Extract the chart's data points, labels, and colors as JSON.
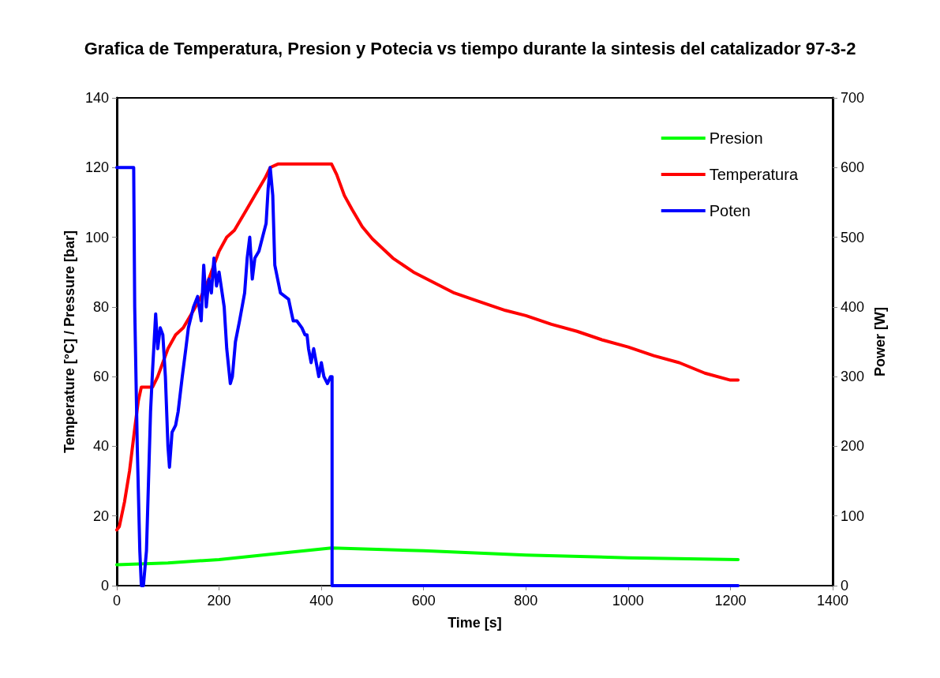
{
  "chart_data": {
    "type": "line",
    "title": "Grafica de Temperatura, Presion y Potecia vs tiempo durante la sintesis del catalizador 97-3-2",
    "xlabel": "Time [s]",
    "ylabel": "Temperature [°C] / Pressure [bar]",
    "y2label": "Power [W]",
    "xlim": [
      0,
      1400
    ],
    "xticks": [
      0,
      200,
      400,
      600,
      800,
      1000,
      1200,
      1400
    ],
    "ylim": [
      0,
      140
    ],
    "yticks": [
      0,
      20,
      40,
      60,
      80,
      100,
      120,
      140
    ],
    "y2lim": [
      0,
      700
    ],
    "y2ticks": [
      0,
      100,
      200,
      300,
      400,
      500,
      600,
      700
    ],
    "grid": false,
    "legend": "top right",
    "marker": "none",
    "line_style": "solid",
    "series": [
      {
        "name": "Presion",
        "color": "#00ff00",
        "x": [
          0,
          100,
          200,
          300,
          420,
          600,
          800,
          1000,
          1215
        ],
        "values": [
          6,
          6.5,
          7.5,
          9,
          10.8,
          10,
          8.8,
          8,
          7.5
        ]
      },
      {
        "name": "Temperatura",
        "color": "#ff0000",
        "x": [
          0,
          5,
          15,
          25,
          35,
          42,
          48,
          70,
          80,
          90,
          100,
          115,
          130,
          150,
          165,
          180,
          200,
          215,
          230,
          250,
          270,
          290,
          300,
          315,
          420,
          430,
          445,
          460,
          480,
          500,
          540,
          580,
          620,
          660,
          700,
          760,
          800,
          850,
          900,
          950,
          1000,
          1050,
          1100,
          1150,
          1200,
          1215
        ],
        "values": [
          16,
          17,
          24,
          33,
          45,
          53,
          57,
          57,
          60,
          64,
          68,
          72,
          74,
          79,
          83,
          88,
          96,
          100,
          102,
          107,
          112,
          117,
          120,
          121,
          121,
          118,
          112,
          108,
          103,
          99.5,
          94,
          90,
          87,
          84,
          82,
          79,
          77.5,
          75,
          73,
          70.5,
          68.5,
          66,
          64,
          61,
          59,
          59
        ]
      },
      {
        "name": "Poten",
        "color": "#0000ff",
        "axis": "y2",
        "x": [
          0,
          33,
          35,
          40,
          45,
          48,
          52,
          58,
          62,
          66,
          70,
          73,
          76,
          80,
          85,
          90,
          95,
          100,
          103,
          108,
          115,
          120,
          128,
          135,
          140,
          150,
          158,
          165,
          170,
          175,
          180,
          185,
          190,
          195,
          200,
          210,
          215,
          222,
          226,
          232,
          240,
          250,
          255,
          260,
          265,
          270,
          278,
          285,
          292,
          296,
          300,
          305,
          309,
          320,
          336,
          342,
          345,
          352,
          362,
          368,
          372,
          375,
          380,
          385,
          390,
          395,
          400,
          405,
          412,
          418,
          421,
          421,
          1215
        ],
        "values": [
          600,
          600,
          400,
          200,
          50,
          0,
          0,
          50,
          150,
          250,
          310,
          350,
          390,
          340,
          370,
          360,
          300,
          200,
          170,
          220,
          230,
          250,
          300,
          340,
          370,
          400,
          415,
          380,
          460,
          400,
          440,
          420,
          470,
          430,
          450,
          400,
          340,
          290,
          300,
          350,
          380,
          420,
          470,
          500,
          440,
          470,
          480,
          500,
          520,
          570,
          600,
          560,
          460,
          420,
          411,
          390,
          380,
          380,
          370,
          360,
          360,
          340,
          320,
          340,
          320,
          300,
          320,
          300,
          290,
          300,
          300,
          0,
          0
        ]
      }
    ]
  }
}
